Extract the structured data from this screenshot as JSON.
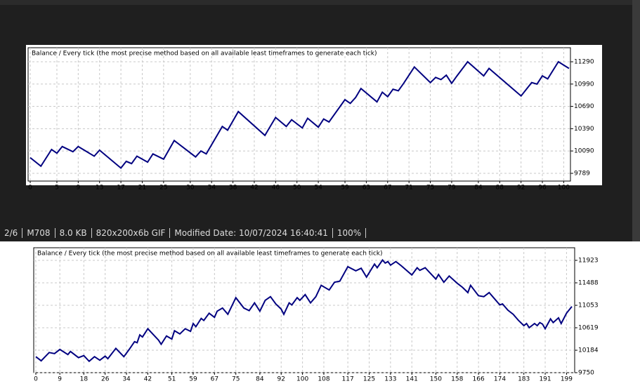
{
  "chart_data": [
    {
      "type": "line",
      "title": "Balance / Every tick (the most precise method based on all available least timeframes to generate each tick)",
      "color": "#000080",
      "grid": true,
      "x": [
        0,
        2,
        4,
        5,
        6,
        8,
        9,
        12,
        13,
        17,
        18,
        19,
        20,
        22,
        23,
        25,
        27,
        31,
        32,
        33,
        36,
        37,
        39,
        44,
        46,
        48,
        49,
        51,
        52,
        54,
        55,
        56,
        59,
        60,
        61,
        62,
        65,
        66,
        67,
        68,
        69,
        70,
        72,
        75,
        76,
        77,
        78,
        79,
        80,
        82,
        85,
        86,
        92,
        94,
        95,
        96,
        97,
        99,
        101
      ],
      "values": [
        10000,
        9885,
        10110,
        10060,
        10150,
        10080,
        10150,
        10020,
        10100,
        9860,
        9950,
        9920,
        10020,
        9940,
        10050,
        9980,
        10230,
        10010,
        10090,
        10050,
        10420,
        10370,
        10620,
        10300,
        10540,
        10420,
        10510,
        10400,
        10530,
        10410,
        10520,
        10480,
        10780,
        10730,
        10810,
        10930,
        10750,
        10880,
        10820,
        10920,
        10900,
        11000,
        11220,
        11010,
        11080,
        11050,
        11110,
        11000,
        11100,
        11290,
        11100,
        11200,
        10830,
        11010,
        10990,
        11100,
        11060,
        11290,
        11200
      ],
      "xlim": [
        0,
        101
      ],
      "ylim": [
        9685,
        11479
      ],
      "xticks": [
        0,
        5,
        9,
        13,
        17,
        21,
        25,
        30,
        34,
        38,
        42,
        46,
        50,
        54,
        59,
        63,
        67,
        71,
        75,
        79,
        84,
        88,
        92,
        96,
        100
      ],
      "yticks": [
        9789,
        10090,
        10390,
        10690,
        10990,
        11290
      ]
    },
    {
      "type": "line",
      "title": "Balance / Every tick (the most precise method based on all available least timeframes to generate each tick)",
      "color": "#000080",
      "grid": true,
      "x": [
        0,
        2,
        5,
        7,
        9,
        12,
        13,
        16,
        18,
        20,
        22,
        24,
        26,
        27,
        30,
        33,
        35,
        37,
        38,
        39,
        40,
        42,
        46,
        47,
        49,
        51,
        52,
        54,
        56,
        58,
        59,
        60,
        62,
        63,
        65,
        67,
        68,
        70,
        72,
        75,
        78,
        80,
        82,
        84,
        86,
        88,
        90,
        92,
        93,
        95,
        96,
        98,
        99,
        101,
        103,
        105,
        107,
        110,
        112,
        114,
        117,
        120,
        122,
        124,
        127,
        128,
        130,
        131,
        132,
        133,
        135,
        137,
        141,
        143,
        144,
        146,
        150,
        151,
        153,
        155,
        158,
        160,
        162,
        163,
        166,
        168,
        170,
        172,
        174,
        175,
        177,
        179,
        181,
        183,
        184,
        185,
        187,
        188,
        189,
        190,
        191,
        193,
        194,
        196,
        197,
        199,
        201
      ],
      "values": [
        10060,
        9980,
        10140,
        10120,
        10200,
        10100,
        10160,
        10040,
        10080,
        9970,
        10060,
        9990,
        10070,
        10020,
        10220,
        10060,
        10200,
        10350,
        10330,
        10480,
        10440,
        10600,
        10380,
        10300,
        10460,
        10400,
        10560,
        10500,
        10600,
        10550,
        10700,
        10640,
        10800,
        10760,
        10900,
        10820,
        10940,
        11000,
        10880,
        11200,
        11000,
        10950,
        11100,
        10940,
        11150,
        11220,
        11080,
        10980,
        10880,
        11100,
        11060,
        11200,
        11150,
        11260,
        11100,
        11220,
        11440,
        11350,
        11500,
        11520,
        11800,
        11720,
        11770,
        11600,
        11850,
        11780,
        11930,
        11870,
        11900,
        11830,
        11900,
        11820,
        11640,
        11780,
        11730,
        11780,
        11560,
        11650,
        11500,
        11620,
        11480,
        11400,
        11300,
        11440,
        11240,
        11220,
        11300,
        11180,
        11060,
        11080,
        10960,
        10880,
        10760,
        10660,
        10700,
        10620,
        10700,
        10660,
        10720,
        10690,
        10600,
        10790,
        10720,
        10810,
        10700,
        10900,
        11030
      ],
      "xlim": [
        0,
        201
      ],
      "ylim": [
        9750,
        12167
      ],
      "xticks": [
        0,
        9,
        18,
        26,
        34,
        42,
        51,
        59,
        67,
        75,
        84,
        92,
        100,
        108,
        117,
        125,
        133,
        141,
        150,
        158,
        166,
        174,
        183,
        191,
        199
      ],
      "yticks": [
        9750,
        10184,
        10619,
        11053,
        11488,
        11923
      ]
    }
  ],
  "status_bar": {
    "items": [
      "2/6",
      "M708",
      "8.0 KB",
      "820x200x6b GIF",
      "Modified Date: 10/07/2024 16:40:41",
      "100%"
    ]
  }
}
